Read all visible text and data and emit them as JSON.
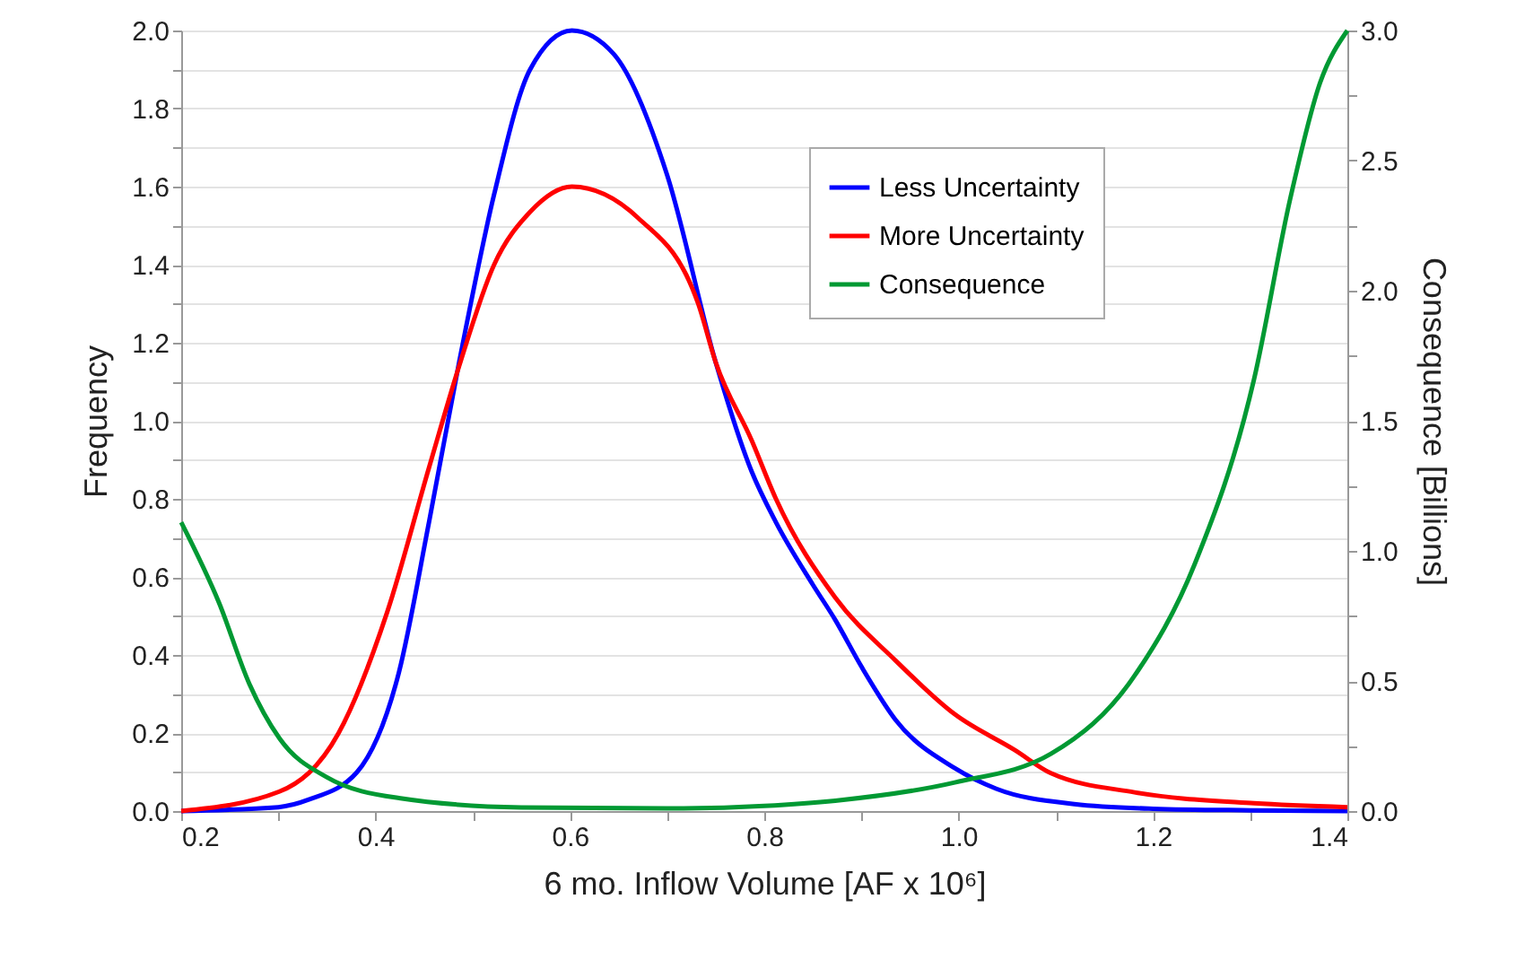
{
  "chart_data": {
    "type": "line",
    "xlabel": "6 mo. Inflow Volume [AF x 10⁶]",
    "ylabel": "Frequency",
    "y2label": "Consequence [Billions]",
    "xlim": [
      0.2,
      1.4
    ],
    "xticks": [
      0.2,
      {
        "value": 0.3,
        "label": null
      },
      0.4,
      {
        "value": 0.5,
        "label": null
      },
      0.6,
      {
        "value": 0.7,
        "label": null
      },
      0.8,
      {
        "value": 0.9,
        "label": null
      },
      {
        "value": 1.0,
        "label": "1.0"
      },
      {
        "value": 1.1,
        "label": null
      },
      1.2,
      {
        "value": 1.3,
        "label": null
      },
      1.4
    ],
    "ylim": [
      0,
      2.0
    ],
    "yticks": [
      {
        "value": 0,
        "label": "0.0"
      },
      {
        "value": 0.1,
        "label": null
      },
      0.2,
      {
        "value": 0.3,
        "label": null
      },
      0.4,
      {
        "value": 0.5,
        "label": null
      },
      0.6,
      {
        "value": 0.7,
        "label": null
      },
      0.8,
      {
        "value": 0.9,
        "label": null
      },
      {
        "value": 1.0,
        "label": "1.0"
      },
      {
        "value": 1.1,
        "label": null
      },
      1.2,
      {
        "value": 1.3,
        "label": null
      },
      1.4,
      {
        "value": 1.5,
        "label": null
      },
      1.6,
      {
        "value": 1.7,
        "label": null
      },
      1.8,
      {
        "value": 1.9,
        "label": null
      },
      {
        "value": 2.0,
        "label": "2.0"
      }
    ],
    "y2lim": [
      0,
      3.0
    ],
    "y2ticks": [
      {
        "value": 0,
        "label": "0.0"
      },
      {
        "value": 0.25,
        "label": null
      },
      0.5,
      {
        "value": 0.75,
        "label": null
      },
      {
        "value": 1.0,
        "label": "1.0"
      },
      {
        "value": 1.25,
        "label": null
      },
      1.5,
      {
        "value": 1.75,
        "label": null
      },
      {
        "value": 2.0,
        "label": "2.0"
      },
      {
        "value": 2.25,
        "label": null
      },
      2.5,
      {
        "value": 2.75,
        "label": null
      },
      {
        "value": 3.0,
        "label": "3.0"
      }
    ],
    "grid": "y",
    "legend": "top right",
    "line_style": "solid",
    "marker": "none",
    "series": [
      {
        "name": "Less Uncertainty",
        "color": "#0000ff",
        "x": [
          0.2,
          0.3,
          0.332,
          0.381,
          0.424,
          0.455,
          0.486,
          0.522,
          0.559,
          0.602,
          0.645,
          0.7,
          0.75,
          0.787,
          0.812,
          0.85,
          0.873,
          0.9,
          0.935,
          0.996,
          1.039,
          1.119,
          1.2,
          1.3,
          1.4
        ],
        "values": [
          0,
          0.01,
          0.03,
          0.1,
          0.355,
          0.74,
          1.15,
          1.58,
          1.9,
          2.0,
          1.94,
          1.63,
          1.15,
          0.87,
          0.74,
          0.58,
          0.49,
          0.37,
          0.234,
          0.11,
          0.057,
          0.018,
          0.006,
          0.002,
          0
        ]
      },
      {
        "name": "More Uncertainty",
        "color": "#ff0000",
        "x": [
          0.2,
          0.301,
          0.362,
          0.412,
          0.455,
          0.486,
          0.522,
          0.559,
          0.602,
          0.67,
          0.732,
          0.75,
          0.787,
          0.812,
          0.873,
          0.935,
          0.996,
          1.058,
          1.095,
          1.181,
          1.304,
          1.4
        ],
        "values": [
          0,
          0.05,
          0.2,
          0.51,
          0.88,
          1.14,
          1.4,
          1.535,
          1.6,
          1.52,
          1.3,
          1.15,
          0.95,
          0.8,
          0.547,
          0.386,
          0.248,
          0.156,
          0.097,
          0.048,
          0.02,
          0.01
        ]
      },
      {
        "name": "Consequence",
        "color": "#009933",
        "axis": "y2",
        "x": [
          0.2,
          0.239,
          0.27,
          0.301,
          0.35,
          0.424,
          0.55,
          0.7,
          0.8,
          0.873,
          0.996,
          1.095,
          1.181,
          1.243,
          1.304,
          1.341,
          1.372,
          1.4
        ],
        "values": [
          1.11,
          0.8,
          0.49,
          0.28,
          0.13,
          0.05,
          0.014,
          0.01,
          0.02,
          0.04,
          0.11,
          0.22,
          0.52,
          0.95,
          1.66,
          2.35,
          2.8,
          3.0
        ]
      }
    ]
  }
}
